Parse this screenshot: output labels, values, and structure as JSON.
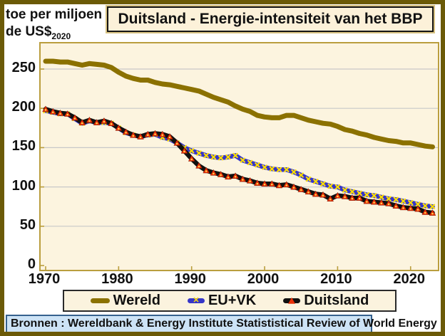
{
  "header": {
    "title": "Duitsland - Energie-intensiteit van het BBP",
    "y_axis_label_line1": "toe per miljoen",
    "y_axis_label_line2": "de US$",
    "y_axis_label_subscript": "2020"
  },
  "source_bar": {
    "text": "Bronnen : Wereldbank & Energy Institute Statististical Review of World Energy"
  },
  "legend": {
    "items": [
      {
        "label": "Wereld"
      },
      {
        "label": "EU+VK"
      },
      {
        "label": "Duitsland"
      }
    ]
  },
  "colors": {
    "outer_border": "#6B5A07",
    "plot_background": "#FCF4DF",
    "plot_frame": "#BA9E3E",
    "gridline": "#C8C8C8",
    "wereld_line": "#8B7100",
    "eu_line": "#3636C8",
    "eu_marker": "#FFDF00",
    "duitsland_line": "#101010",
    "duitsland_marker": "#E83008",
    "duitsland_marker_dot": "#FFD84D",
    "source_bar_bg": "#CDE3F6"
  },
  "chart_data": {
    "type": "line",
    "title": "Duitsland - Energie-intensiteit van het BBP",
    "ylabel": "toe per miljoen de US$2020",
    "xlabel": "",
    "x_start": 1970,
    "x_end": 2023,
    "xticks": [
      1970,
      1980,
      1990,
      2000,
      2010,
      2020
    ],
    "yticks": [
      0,
      50,
      100,
      150,
      200,
      250
    ],
    "ylim": [
      0,
      282
    ],
    "grid": "horizontal",
    "legend_position": "bottom",
    "series": [
      {
        "name": "Wereld",
        "marker": "none",
        "values": [
          260,
          260,
          259,
          259,
          257,
          255,
          257,
          256,
          255,
          252,
          246,
          241,
          238,
          236,
          236,
          233,
          231,
          230,
          228,
          226,
          224,
          222,
          218,
          214,
          211,
          208,
          203,
          199,
          196,
          191,
          189,
          188,
          188,
          191,
          191,
          188,
          185,
          183,
          181,
          180,
          177,
          173,
          171,
          168,
          166,
          163,
          161,
          159,
          158,
          156,
          156,
          154,
          152,
          151
        ]
      },
      {
        "name": "EU+VK",
        "marker": "yellow-x",
        "values": [
          197,
          195,
          193,
          193,
          187,
          181,
          184,
          182,
          182,
          181,
          175,
          169,
          166,
          164,
          166,
          167,
          163,
          161,
          156,
          150,
          146,
          143,
          140,
          138,
          137,
          138,
          140,
          134,
          131,
          128,
          125,
          123,
          122,
          122,
          119,
          115,
          110,
          107,
          104,
          101,
          100,
          96,
          94,
          92,
          90,
          89,
          87,
          85,
          84,
          82,
          80,
          78,
          76,
          75
        ]
      },
      {
        "name": "Duitsland",
        "marker": "red-triangle",
        "values": [
          199,
          196,
          194,
          193,
          188,
          182,
          185,
          182,
          184,
          181,
          175,
          170,
          166,
          164,
          167,
          168,
          167,
          164,
          156,
          146,
          136,
          127,
          121,
          118,
          116,
          113,
          114,
          110,
          108,
          105,
          104,
          104,
          102,
          103,
          100,
          97,
          94,
          91,
          90,
          85,
          89,
          88,
          86,
          86,
          82,
          81,
          80,
          79,
          76,
          74,
          73,
          72,
          68,
          67
        ]
      }
    ]
  }
}
